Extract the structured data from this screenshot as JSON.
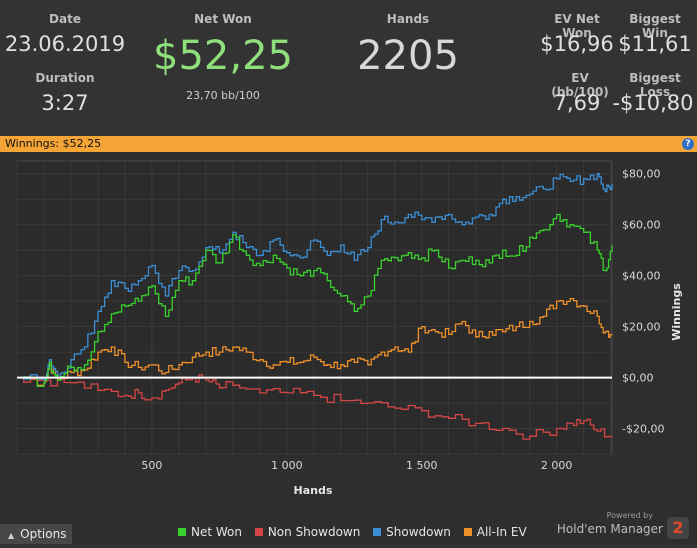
{
  "stats": {
    "date_label": "Date",
    "date_value": "23.06.2019",
    "duration_label": "Duration",
    "duration_value": "3:27",
    "netwon_label": "Net Won",
    "netwon_value": "$52,25",
    "netwon_sub": "23,70 bb/100",
    "hands_label": "Hands",
    "hands_value": "2205",
    "evnet_label": "EV Net Won",
    "evnet_value": "$16,96",
    "evbb_label": "EV (bb/100)",
    "evbb_value": "7,69",
    "bigwin_label": "Biggest Win",
    "bigwin_value": "$11,61",
    "bigloss_label": "Biggest Loss",
    "bigloss_value": "-$10,80"
  },
  "winnings_bar": {
    "text": "Winnings: $52,25",
    "help_icon": "help-icon"
  },
  "colors": {
    "net_won": "#39d12c",
    "non_showdown": "#d64545",
    "showdown": "#3b8fd6",
    "all_in_ev": "#f0902a",
    "header_bar": "#f4a536",
    "net_won_value": "#8fe07c"
  },
  "chart_data": {
    "type": "line",
    "xlabel": "Hands",
    "ylabel": "Winnings",
    "xlim": [
      0,
      2205
    ],
    "ylim": [
      -30,
      85
    ],
    "x_ticks": [
      500,
      1000,
      1500,
      2000
    ],
    "x_tick_labels": [
      "500",
      "1 000",
      "1 500",
      "2 000"
    ],
    "y_ticks": [
      -20,
      0,
      20,
      40,
      60,
      80
    ],
    "y_tick_labels": [
      "-$20,00",
      "$0,00",
      "$20,00",
      "$40,00",
      "$60,00",
      "$80,00"
    ],
    "grid": true,
    "legend_position": "bottom",
    "series": [
      {
        "name": "Net Won",
        "color": "#39d12c",
        "x": [
          0,
          100,
          120,
          150,
          200,
          250,
          300,
          350,
          400,
          450,
          500,
          550,
          600,
          650,
          700,
          750,
          800,
          850,
          900,
          950,
          1000,
          1050,
          1100,
          1150,
          1200,
          1250,
          1300,
          1350,
          1400,
          1450,
          1500,
          1550,
          1600,
          1650,
          1700,
          1750,
          1800,
          1850,
          1900,
          1950,
          2000,
          2050,
          2100,
          2150,
          2180,
          2205
        ],
        "y": [
          0,
          -2,
          6,
          -1,
          4,
          5,
          18,
          25,
          28,
          30,
          36,
          24,
          38,
          38,
          50,
          45,
          56,
          48,
          44,
          48,
          43,
          40,
          42,
          38,
          32,
          26,
          32,
          46,
          47,
          49,
          47,
          50,
          43,
          46,
          46,
          45,
          50,
          48,
          55,
          58,
          64,
          60,
          57,
          50,
          42,
          52
        ]
      },
      {
        "name": "Non Showdown",
        "color": "#d64545",
        "x": [
          0,
          100,
          200,
          300,
          400,
          450,
          500,
          550,
          600,
          650,
          700,
          750,
          800,
          900,
          1000,
          1100,
          1200,
          1300,
          1400,
          1500,
          1600,
          1700,
          1800,
          1900,
          2000,
          2050,
          2100,
          2150,
          2205
        ],
        "y": [
          0,
          -1,
          -2,
          -5,
          -7,
          -6,
          -8,
          -5,
          -2,
          0,
          -1,
          -4,
          -3,
          -6,
          -6,
          -7,
          -9,
          -10,
          -12,
          -13,
          -16,
          -18,
          -20,
          -23,
          -20,
          -18,
          -17,
          -21,
          -23
        ]
      },
      {
        "name": "Showdown",
        "color": "#3b8fd6",
        "x": [
          0,
          100,
          120,
          150,
          200,
          250,
          300,
          350,
          400,
          450,
          500,
          550,
          600,
          650,
          700,
          750,
          800,
          850,
          900,
          950,
          1000,
          1050,
          1100,
          1150,
          1200,
          1250,
          1300,
          1350,
          1400,
          1450,
          1500,
          1550,
          1600,
          1650,
          1700,
          1750,
          1800,
          1850,
          1900,
          1950,
          2000,
          2050,
          2100,
          2150,
          2180,
          2205
        ],
        "y": [
          0,
          -1,
          7,
          1,
          7,
          12,
          26,
          38,
          35,
          38,
          44,
          32,
          42,
          42,
          51,
          49,
          57,
          51,
          48,
          54,
          49,
          47,
          54,
          48,
          52,
          46,
          51,
          62,
          61,
          64,
          62,
          63,
          64,
          60,
          63,
          64,
          70,
          71,
          72,
          74,
          78,
          77,
          78,
          80,
          73,
          76
        ]
      },
      {
        "name": "All-In EV",
        "color": "#f0902a",
        "x": [
          0,
          100,
          120,
          150,
          200,
          250,
          300,
          350,
          400,
          450,
          500,
          550,
          600,
          650,
          700,
          750,
          800,
          850,
          900,
          950,
          1000,
          1050,
          1100,
          1150,
          1200,
          1250,
          1300,
          1350,
          1400,
          1450,
          1500,
          1550,
          1600,
          1650,
          1700,
          1750,
          1800,
          1850,
          1900,
          1950,
          2000,
          2050,
          2100,
          2150,
          2180,
          2205
        ],
        "y": [
          0,
          -2,
          5,
          -1,
          2,
          3,
          10,
          12,
          6,
          4,
          5,
          2,
          5,
          8,
          10,
          10,
          12,
          10,
          7,
          5,
          6,
          6,
          8,
          5,
          5,
          6,
          5,
          10,
          12,
          10,
          20,
          18,
          17,
          22,
          16,
          18,
          18,
          20,
          22,
          24,
          30,
          31,
          28,
          24,
          18,
          17
        ]
      }
    ]
  },
  "footer": {
    "options_label": "Options",
    "legend": [
      "Net Won",
      "Non Showdown",
      "Showdown",
      "All-In EV"
    ],
    "powered_by": "Powered by",
    "brand": "Hold'em Manager",
    "brand_num": "2"
  }
}
